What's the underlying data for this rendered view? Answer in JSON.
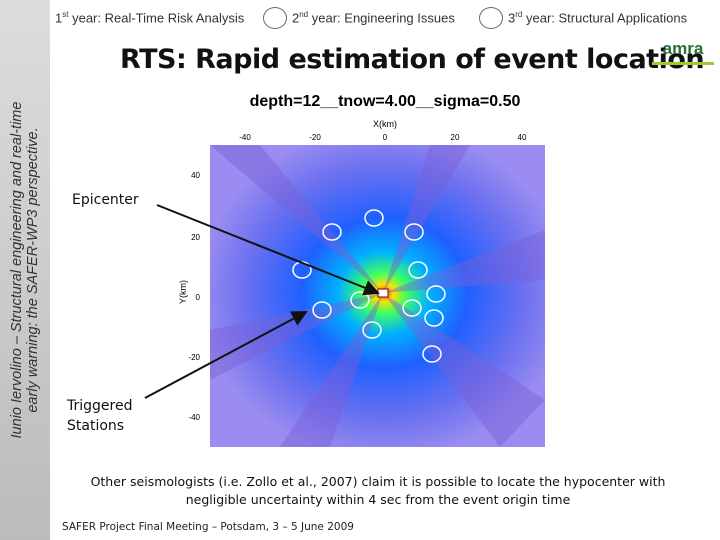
{
  "header": {
    "tabs": [
      {
        "ordinal": "1",
        "suffix": "st",
        "label": "year: Real-Time Risk Analysis"
      },
      {
        "ordinal": "2",
        "suffix": "nd",
        "label": "year: Engineering Issues"
      },
      {
        "ordinal": "3",
        "suffix": "rd",
        "label": "year: Structural Applications"
      }
    ],
    "logo": "amra"
  },
  "sidebar": {
    "line1": "Iunio Iervolino – Structural engineering and real-time",
    "line2": "early warning: the SAFER-WP3 perspective."
  },
  "title": "RTS: Rapid estimation of event location",
  "figure": {
    "title": "depth=12__tnow=4.00__sigma=0.50",
    "x_label": "X(km)",
    "y_label": "Y(km)",
    "x_ticks": [
      "-40",
      "-20",
      "0",
      "20",
      "40"
    ],
    "y_ticks": [
      "40",
      "20",
      "0",
      "-20",
      "-40"
    ]
  },
  "annotations": {
    "epicenter": "Epicenter",
    "stations": [
      "Triggered",
      "Stations"
    ]
  },
  "caption": [
    "Other seismologists (i.e. Zollo et al., 2007) claim it is possible to locate the hypocenter with",
    "negligible uncertainty within 4 sec from the event origin time"
  ],
  "footer": "SAFER Project Final Meeting – Potsdam, 3 – 5 June 2009"
}
